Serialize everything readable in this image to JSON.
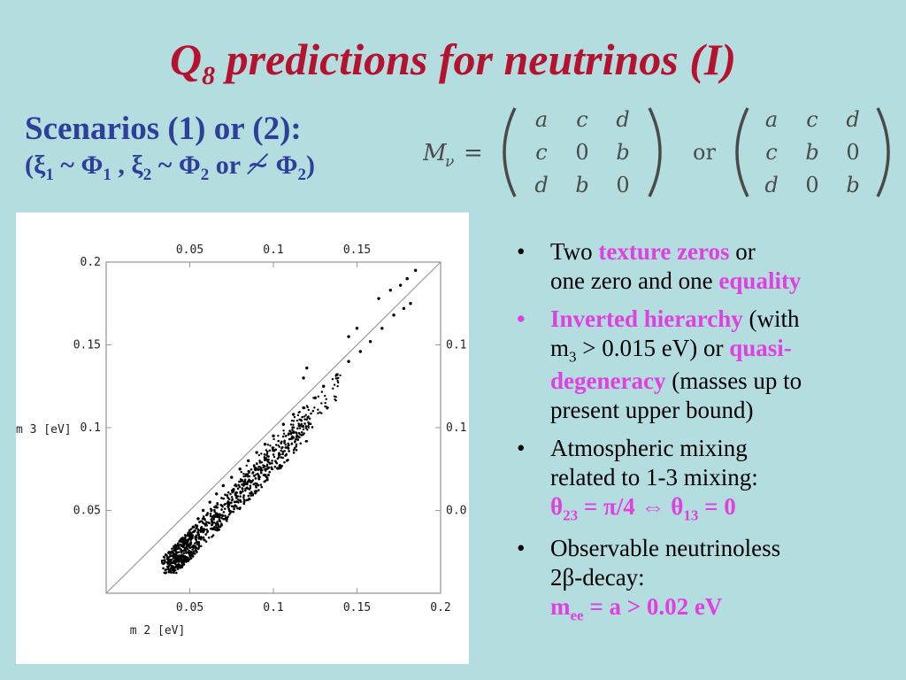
{
  "slide": {
    "title_main": "Q",
    "title_sub": "8",
    "title_rest": " predictions for neutrinos (I)",
    "scenarios_heading": "Scenarios (1) or (2):",
    "scenarios_line2": {
      "open": "(ξ",
      "s1": "1",
      "t1": " ~ Φ",
      "s2": "1",
      "t2": " , ξ",
      "s3": "2",
      "t3": " ~ Φ",
      "s4": "2",
      "t4": " or ≁ Φ",
      "s5": "2",
      "close": ")"
    },
    "matrix": {
      "lhs": "M",
      "lhs_sub": "ν",
      "equals": "=",
      "or": "or",
      "m1": [
        [
          "a",
          "c",
          "d"
        ],
        [
          "c",
          "0",
          "b"
        ],
        [
          "d",
          "b",
          "0"
        ]
      ],
      "m2": [
        [
          "a",
          "c",
          "d"
        ],
        [
          "c",
          "b",
          "0"
        ],
        [
          "d",
          "0",
          "b"
        ]
      ]
    }
  },
  "bullets": [
    {
      "bullet": "•",
      "l1a": "Two ",
      "l1b": "texture zeros",
      "l1c": " or",
      "l2a": "one zero and one ",
      "l2b": "equality"
    },
    {
      "bullet": "•",
      "l1a": "Inverted hierarchy",
      "l1b": " (with",
      "l2a": "m",
      "l2sub": "3",
      "l2b": " > 0.015 eV) or ",
      "l2c": "quasi-",
      "l3a": "degeneracy",
      "l3b": " (masses up to",
      "l4": "present upper bound)"
    },
    {
      "bullet": "•",
      "l1": "Atmospheric mixing",
      "l2": "related to 1-3 mixing:",
      "l3a": "θ",
      "l3s1": "23",
      "l3b": " = π/4 ⇔ θ",
      "l3s2": "13",
      "l3c": " = 0"
    },
    {
      "bullet": "•",
      "l1": "Observable neutrinoless",
      "l2": "2β-decay:",
      "l3a": "m",
      "l3s": "ee",
      "l3b": " = a > 0.02 eV"
    }
  ],
  "chart_data": {
    "type": "scatter",
    "xlabel": "m 2 [eV]",
    "ylabel": "m 3 [eV]",
    "xlim": [
      0,
      0.2
    ],
    "ylim": [
      0,
      0.2
    ],
    "x_ticks": [
      "0.05",
      "0.1",
      "0.15",
      "0.2"
    ],
    "x_ticks_top": [
      "0.05",
      "0.1",
      "0.15"
    ],
    "y_ticks": [
      "0.05",
      "0.1",
      "0.15",
      "0.2"
    ],
    "y_ticks_right": [
      "0.0",
      "0.1",
      "0.1"
    ],
    "reference_line": "m3 = m2",
    "grid": false,
    "series": [
      {
        "values": [
          [
            0.04,
            0.015
          ],
          [
            0.042,
            0.02
          ],
          [
            0.045,
            0.025
          ],
          [
            0.048,
            0.03
          ],
          [
            0.05,
            0.035
          ],
          [
            0.052,
            0.04
          ],
          [
            0.055,
            0.045
          ],
          [
            0.058,
            0.05
          ],
          [
            0.062,
            0.055
          ],
          [
            0.066,
            0.06
          ],
          [
            0.07,
            0.065
          ],
          [
            0.075,
            0.07
          ],
          [
            0.08,
            0.075
          ],
          [
            0.085,
            0.08
          ],
          [
            0.09,
            0.085
          ],
          [
            0.095,
            0.09
          ],
          [
            0.1,
            0.095
          ],
          [
            0.106,
            0.102
          ],
          [
            0.112,
            0.108
          ],
          [
            0.118,
            0.112
          ],
          [
            0.125,
            0.118
          ],
          [
            0.13,
            0.125
          ],
          [
            0.138,
            0.132
          ],
          [
            0.145,
            0.14
          ],
          [
            0.152,
            0.146
          ],
          [
            0.158,
            0.152
          ],
          [
            0.165,
            0.16
          ],
          [
            0.172,
            0.168
          ],
          [
            0.178,
            0.172
          ],
          [
            0.182,
            0.175
          ],
          [
            0.185,
            0.195
          ],
          [
            0.12,
            0.136
          ],
          [
            0.118,
            0.13
          ],
          [
            0.145,
            0.155
          ],
          [
            0.15,
            0.16
          ],
          [
            0.163,
            0.178
          ],
          [
            0.17,
            0.183
          ],
          [
            0.176,
            0.186
          ],
          [
            0.18,
            0.19
          ]
        ]
      }
    ]
  }
}
